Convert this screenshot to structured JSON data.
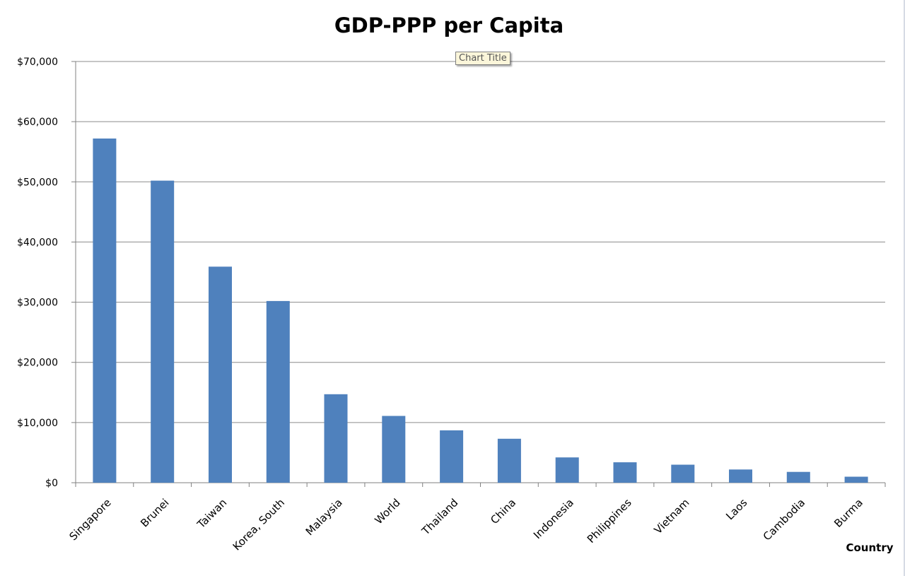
{
  "chart_data": {
    "type": "bar",
    "title": "GDP-PPP per Capita",
    "xlabel": "Country",
    "ylabel": "",
    "categories": [
      "Singapore",
      "Brunei",
      "Taiwan",
      "Korea, South",
      "Malaysia",
      "World",
      "Thailand",
      "China",
      "Indonesia",
      "Philippines",
      "Vietnam",
      "Laos",
      "Cambodia",
      "Burma"
    ],
    "values": [
      57200,
      50200,
      35900,
      30200,
      14700,
      11100,
      8700,
      7300,
      4200,
      3400,
      3000,
      2200,
      1800,
      1000
    ],
    "ylim": [
      0,
      70000
    ],
    "yticks": [
      "$0",
      "$10,000",
      "$20,000",
      "$30,000",
      "$40,000",
      "$50,000",
      "$60,000",
      "$70,000"
    ],
    "grid": true,
    "legend": "none",
    "bar_color": "#4f81bd",
    "grid_color": "#8c8c8c",
    "tooltip": "Chart Title"
  }
}
